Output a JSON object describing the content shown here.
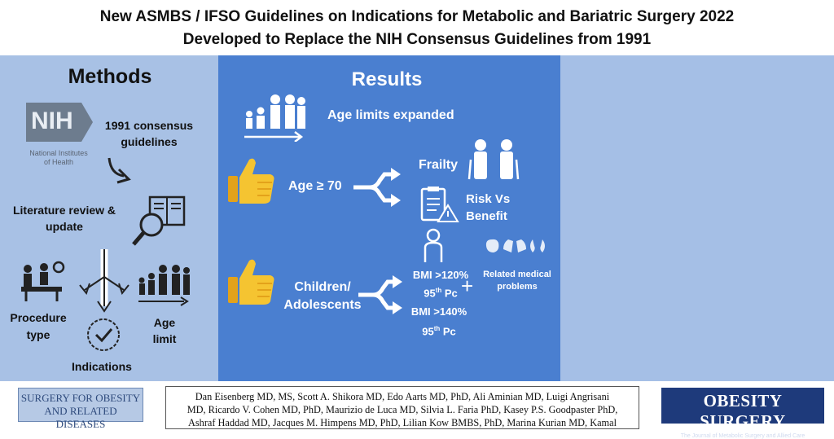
{
  "title": {
    "line1": "New ASMBS / IFSO Guidelines on Indications for Metabolic and Bariatric Surgery 2022",
    "line2": "Developed to Replace the NIH Consensus Guidelines from 1991"
  },
  "methods": {
    "heading": "Methods",
    "nih_logo": "NIH",
    "nih_name_line1": "National Institutes",
    "nih_name_line2": "of Health",
    "consensus_line1": "1991 consensus",
    "consensus_line2": "guidelines",
    "literature_line1": "Literature review &",
    "literature_line2": "update",
    "procedure_line1": "Procedure",
    "procedure_line2": "type",
    "age_line1": "Age",
    "age_line2": "limit",
    "indications": "Indications"
  },
  "results": {
    "heading": "Results",
    "age_limits": "Age limits expanded",
    "age70": "Age ≥ 70",
    "frailty": "Frailty",
    "risk_line1": "Risk Vs",
    "risk_line2": "Benefit",
    "children_line1": "Children/",
    "children_line2": "Adolescents",
    "bmi120": "BMI >120%",
    "bmi140": "BMI >140%",
    "pc_prefix": "95",
    "pc_sup": "th",
    "pc_suffix": " Pc",
    "plus": "+",
    "related_line1": "Related medical",
    "related_line2": "problems"
  },
  "footer": {
    "sfo_line1": "SURGERY FOR OBESITY",
    "sfo_line2": "AND RELATED DISEASES",
    "authors_line1": "Dan Eisenberg MD, MS, Scott A. Shikora MD, Edo Aarts MD, PhD, Ali Aminian MD, Luigi Angrisani",
    "authors_line2": "MD, Ricardo V. Cohen MD, PhD, Maurizio de Luca MD, Silvia L. Faria PhD, Kasey P.S. Goodpaster PhD,",
    "authors_line3": "Ashraf Haddad MD, Jacques M. Himpens MD, PhD, Lilian Kow BMBS, PhD, Marina Kurian MD, Kamal",
    "os_title": "OBESITY SURGERY",
    "os_sub": "The Journal of Metabolic Surgery and Allied Care"
  }
}
